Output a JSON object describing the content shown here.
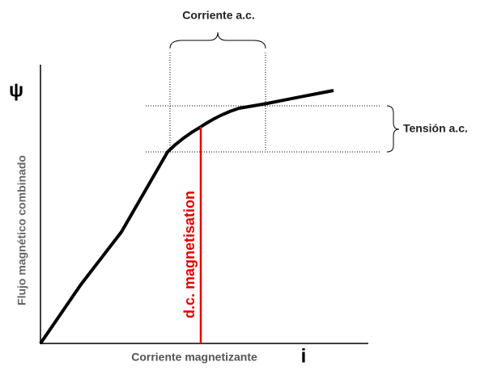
{
  "labels": {
    "top_brace": "Corriente a.c.",
    "right_brace": "Tensión a.c.",
    "y_symbol": "ψ",
    "y_axis": "Flujo magnético combinado",
    "x_axis": "Corriente magnetizante",
    "x_symbol": "i",
    "red_line": "d.c. magnetisation"
  }
}
